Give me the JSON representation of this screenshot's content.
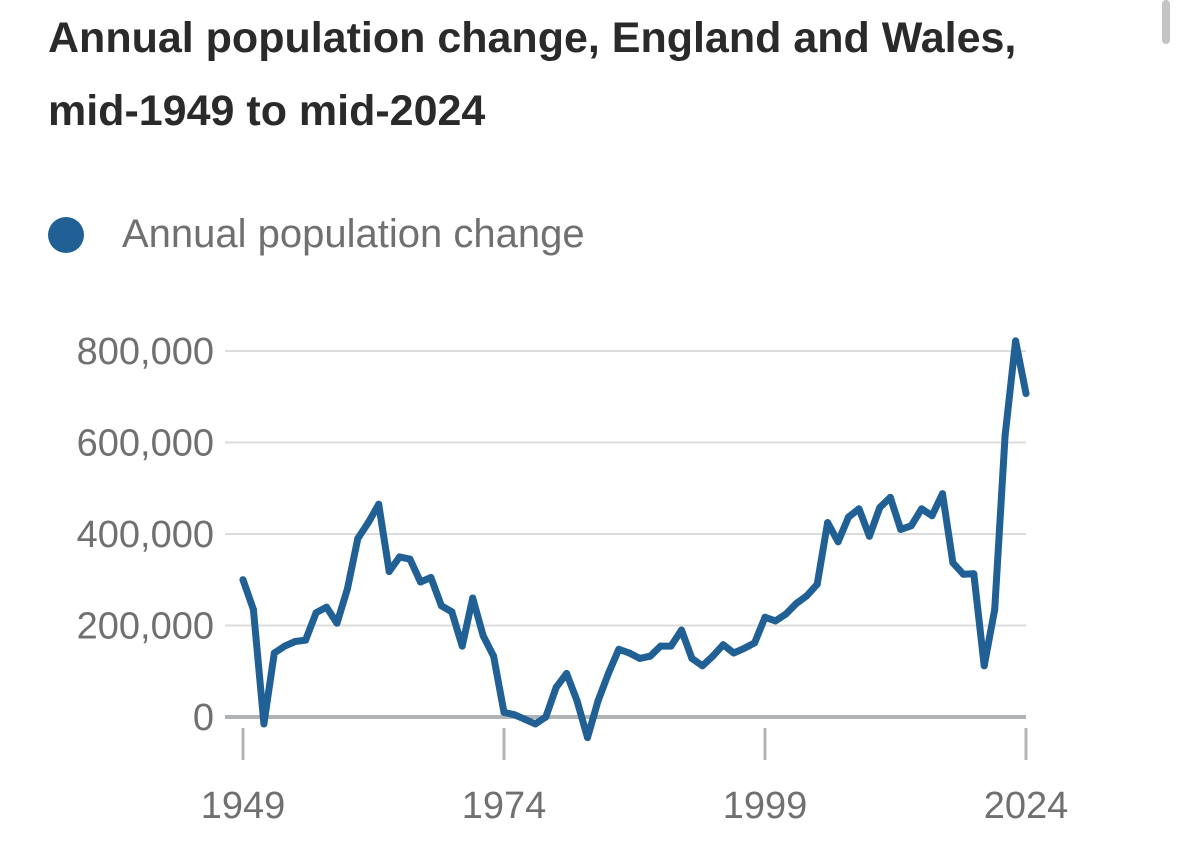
{
  "title": "Annual population change, England and Wales, mid-1949 to mid-2024",
  "legend": {
    "label": "Annual population change",
    "color": "#206095"
  },
  "chart_data": {
    "type": "line",
    "title": "Annual population change, England and Wales, mid-1949 to mid-2024",
    "xlabel": "",
    "ylabel": "",
    "ylim": [
      -60000,
      850000
    ],
    "xlim": [
      1949,
      2024
    ],
    "yticks": [
      0,
      200000,
      400000,
      600000,
      800000
    ],
    "ytick_labels": [
      "0",
      "200,000",
      "400,000",
      "600,000",
      "800,000"
    ],
    "xticks": [
      1949,
      1974,
      1999,
      2024
    ],
    "xtick_labels": [
      "1949",
      "1974",
      "1999",
      "2024"
    ],
    "grid": true,
    "series": [
      {
        "name": "Annual population change",
        "color": "#206095",
        "x": [
          1949,
          1950,
          1951,
          1952,
          1953,
          1954,
          1955,
          1956,
          1957,
          1958,
          1959,
          1960,
          1961,
          1962,
          1963,
          1964,
          1965,
          1966,
          1967,
          1968,
          1969,
          1970,
          1971,
          1972,
          1973,
          1974,
          1975,
          1976,
          1977,
          1978,
          1979,
          1980,
          1981,
          1982,
          1983,
          1984,
          1985,
          1986,
          1987,
          1988,
          1989,
          1990,
          1991,
          1992,
          1993,
          1994,
          1995,
          1996,
          1997,
          1998,
          1999,
          2000,
          2001,
          2002,
          2003,
          2004,
          2005,
          2006,
          2007,
          2008,
          2009,
          2010,
          2011,
          2012,
          2013,
          2014,
          2015,
          2016,
          2017,
          2018,
          2019,
          2020,
          2021,
          2022,
          2023,
          2024
        ],
        "values": [
          300000,
          235000,
          -15000,
          140000,
          155000,
          165000,
          168000,
          228000,
          240000,
          205000,
          280000,
          390000,
          425000,
          465000,
          318000,
          350000,
          345000,
          295000,
          305000,
          243000,
          230000,
          155000,
          260000,
          178000,
          133000,
          10000,
          5000,
          -5000,
          -15000,
          0,
          65000,
          95000,
          35000,
          -45000,
          35000,
          95000,
          148000,
          140000,
          128000,
          133000,
          155000,
          155000,
          190000,
          128000,
          112000,
          133000,
          158000,
          140000,
          150000,
          162000,
          218000,
          210000,
          225000,
          248000,
          265000,
          290000,
          425000,
          383000,
          437000,
          455000,
          395000,
          458000,
          480000,
          410000,
          418000,
          455000,
          440000,
          488000,
          337000,
          312000,
          313000,
          112000,
          235000,
          615000,
          822000,
          707000
        ]
      }
    ]
  }
}
